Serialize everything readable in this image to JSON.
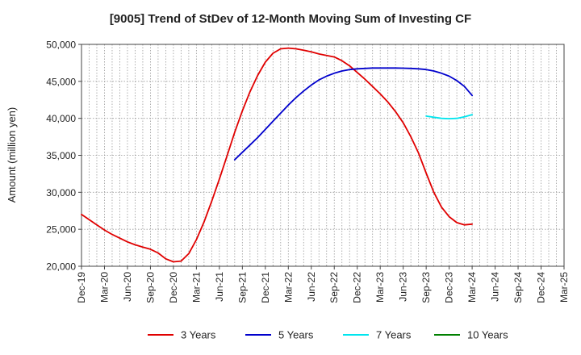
{
  "chart_data": {
    "type": "line",
    "title": "[9005]  Trend of StDev of 12-Month Moving Sum of Investing CF",
    "xlabel": "",
    "ylabel": "Amount (million yen)",
    "ylim": [
      20000,
      50000
    ],
    "yticks": [
      20000,
      25000,
      30000,
      35000,
      40000,
      45000,
      50000
    ],
    "ytick_labels": [
      "20,000",
      "25,000",
      "30,000",
      "35,000",
      "40,000",
      "45,000",
      "50,000"
    ],
    "xtick_labels": [
      "Dec-19",
      "Mar-20",
      "Jun-20",
      "Sep-20",
      "Dec-20",
      "Mar-21",
      "Jun-21",
      "Sep-21",
      "Dec-21",
      "Mar-22",
      "Jun-22",
      "Sep-22",
      "Dec-22",
      "Mar-23",
      "Jun-23",
      "Sep-23",
      "Dec-23",
      "Mar-24",
      "Jun-24",
      "Sep-24",
      "Dec-24",
      "Mar-25"
    ],
    "x_start": "Dec-19",
    "x_end": "Mar-25",
    "grid": true,
    "legend_position": "bottom",
    "series": [
      {
        "name": "3 Years",
        "color": "#e00000",
        "points": [
          [
            "Dec-19",
            27000
          ],
          [
            "Jan-20",
            26300
          ],
          [
            "Feb-20",
            25600
          ],
          [
            "Mar-20",
            24900
          ],
          [
            "Apr-20",
            24300
          ],
          [
            "May-20",
            23800
          ],
          [
            "Jun-20",
            23300
          ],
          [
            "Jul-20",
            22900
          ],
          [
            "Aug-20",
            22600
          ],
          [
            "Sep-20",
            22300
          ],
          [
            "Oct-20",
            21800
          ],
          [
            "Nov-20",
            21000
          ],
          [
            "Dec-20",
            20600
          ],
          [
            "Jan-21",
            20700
          ],
          [
            "Feb-21",
            21700
          ],
          [
            "Mar-21",
            23600
          ],
          [
            "Apr-21",
            26000
          ],
          [
            "May-21",
            28800
          ],
          [
            "Jun-21",
            31800
          ],
          [
            "Jul-21",
            34900
          ],
          [
            "Aug-21",
            38100
          ],
          [
            "Sep-21",
            41000
          ],
          [
            "Oct-21",
            43600
          ],
          [
            "Nov-21",
            45800
          ],
          [
            "Dec-21",
            47600
          ],
          [
            "Jan-22",
            48800
          ],
          [
            "Feb-22",
            49400
          ],
          [
            "Mar-22",
            49500
          ],
          [
            "Apr-22",
            49400
          ],
          [
            "May-22",
            49200
          ],
          [
            "Jun-22",
            49000
          ],
          [
            "Jul-22",
            48700
          ],
          [
            "Aug-22",
            48500
          ],
          [
            "Sep-22",
            48300
          ],
          [
            "Oct-22",
            47800
          ],
          [
            "Nov-22",
            47100
          ],
          [
            "Dec-22",
            46200
          ],
          [
            "Jan-23",
            45300
          ],
          [
            "Feb-23",
            44300
          ],
          [
            "Mar-23",
            43300
          ],
          [
            "Apr-23",
            42200
          ],
          [
            "May-23",
            40900
          ],
          [
            "Jun-23",
            39400
          ],
          [
            "Jul-23",
            37500
          ],
          [
            "Aug-23",
            35300
          ],
          [
            "Sep-23",
            32600
          ],
          [
            "Oct-23",
            30000
          ],
          [
            "Nov-23",
            28000
          ],
          [
            "Dec-23",
            26700
          ],
          [
            "Jan-24",
            25900
          ],
          [
            "Feb-24",
            25600
          ],
          [
            "Mar-24",
            25700
          ]
        ]
      },
      {
        "name": "5 Years",
        "color": "#0000cc",
        "points": [
          [
            "Aug-21",
            34400
          ],
          [
            "Sep-21",
            35400
          ],
          [
            "Oct-21",
            36400
          ],
          [
            "Nov-21",
            37400
          ],
          [
            "Dec-21",
            38500
          ],
          [
            "Jan-22",
            39600
          ],
          [
            "Feb-22",
            40700
          ],
          [
            "Mar-22",
            41800
          ],
          [
            "Apr-22",
            42800
          ],
          [
            "May-22",
            43700
          ],
          [
            "Jun-22",
            44500
          ],
          [
            "Jul-22",
            45200
          ],
          [
            "Aug-22",
            45700
          ],
          [
            "Sep-22",
            46100
          ],
          [
            "Oct-22",
            46400
          ],
          [
            "Nov-22",
            46600
          ],
          [
            "Dec-22",
            46700
          ],
          [
            "Jan-23",
            46750
          ],
          [
            "Feb-23",
            46800
          ],
          [
            "Mar-23",
            46800
          ],
          [
            "Apr-23",
            46800
          ],
          [
            "May-23",
            46800
          ],
          [
            "Jun-23",
            46780
          ],
          [
            "Jul-23",
            46750
          ],
          [
            "Aug-23",
            46700
          ],
          [
            "Sep-23",
            46600
          ],
          [
            "Oct-23",
            46400
          ],
          [
            "Nov-23",
            46100
          ],
          [
            "Dec-23",
            45700
          ],
          [
            "Jan-24",
            45100
          ],
          [
            "Feb-24",
            44300
          ],
          [
            "Mar-24",
            43100
          ]
        ]
      },
      {
        "name": "7 Years",
        "color": "#00e5ee",
        "points": [
          [
            "Sep-23",
            40300
          ],
          [
            "Oct-23",
            40150
          ],
          [
            "Nov-23",
            40000
          ],
          [
            "Dec-23",
            39950
          ],
          [
            "Jan-24",
            40000
          ],
          [
            "Feb-24",
            40200
          ],
          [
            "Mar-24",
            40500
          ]
        ]
      },
      {
        "name": "10 Years",
        "color": "#008000",
        "points": []
      }
    ]
  }
}
